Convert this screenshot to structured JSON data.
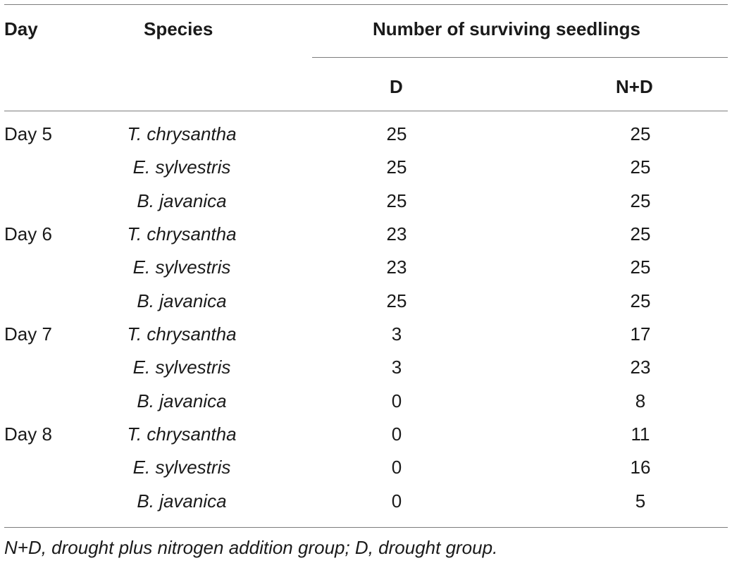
{
  "table": {
    "headers": {
      "day": "Day",
      "species": "Species",
      "group": "Number of surviving seedlings",
      "d": "D",
      "nd": "N+D"
    },
    "rows": [
      {
        "day": "Day 5",
        "species": "T. chrysantha",
        "d": "25",
        "nd": "25"
      },
      {
        "day": "",
        "species": "E. sylvestris",
        "d": "25",
        "nd": "25"
      },
      {
        "day": "",
        "species": "B. javanica",
        "d": "25",
        "nd": "25"
      },
      {
        "day": "Day 6",
        "species": "T. chrysantha",
        "d": "23",
        "nd": "25"
      },
      {
        "day": "",
        "species": "E. sylvestris",
        "d": "23",
        "nd": "25"
      },
      {
        "day": "",
        "species": "B. javanica",
        "d": "25",
        "nd": "25"
      },
      {
        "day": "Day 7",
        "species": "T. chrysantha",
        "d": "3",
        "nd": "17"
      },
      {
        "day": "",
        "species": "E. sylvestris",
        "d": "3",
        "nd": "23"
      },
      {
        "day": "",
        "species": "B. javanica",
        "d": "0",
        "nd": "8"
      },
      {
        "day": "Day 8",
        "species": "T. chrysantha",
        "d": "0",
        "nd": "11"
      },
      {
        "day": "",
        "species": "E. sylvestris",
        "d": "0",
        "nd": "16"
      },
      {
        "day": "",
        "species": "B. javanica",
        "d": "0",
        "nd": "5"
      }
    ],
    "footnote": "N+D, drought plus nitrogen addition group; D, drought group."
  }
}
